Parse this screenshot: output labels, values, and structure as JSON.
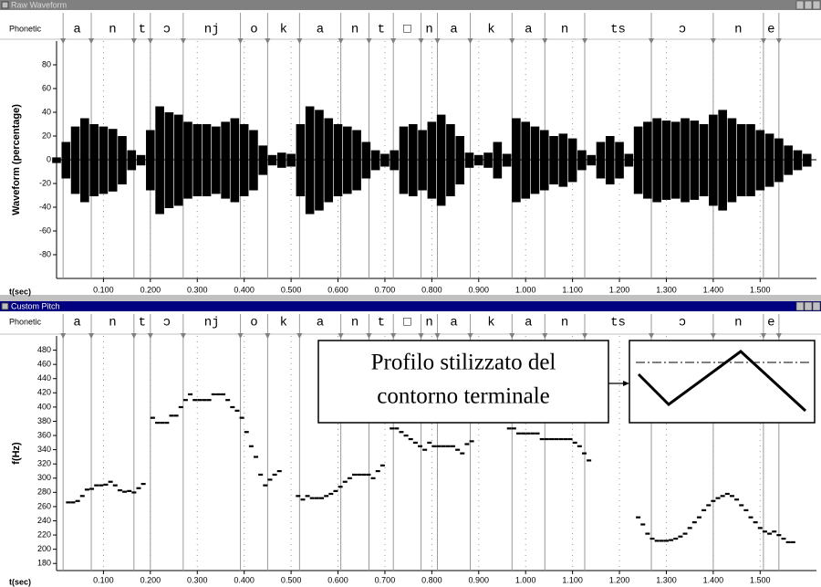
{
  "phonetic": {
    "label": "Phonetic",
    "segments": [
      "a",
      "n",
      "t",
      "ɔ",
      "nj",
      "o",
      "k",
      "a",
      "n",
      "t",
      "□",
      "n",
      "a",
      "k",
      "a",
      "n",
      "ts",
      "ɔ",
      "n",
      "e"
    ],
    "boundaries": [
      0.014,
      0.074,
      0.165,
      0.2,
      0.27,
      0.392,
      0.45,
      0.518,
      0.606,
      0.666,
      0.718,
      0.777,
      0.812,
      0.882,
      0.971,
      1.041,
      1.126,
      1.268,
      1.4,
      1.507,
      1.54
    ]
  },
  "chart_data": [
    {
      "type": "waveform",
      "window_title": "Raw Waveform",
      "ylabel": "Waveform (percentage)",
      "xlabel": "t(sec)",
      "color": "#000000",
      "x": [
        0,
        0.02,
        0.04,
        0.06,
        0.08,
        0.1,
        0.12,
        0.14,
        0.16,
        0.18,
        0.2,
        0.22,
        0.24,
        0.26,
        0.28,
        0.3,
        0.32,
        0.34,
        0.36,
        0.38,
        0.4,
        0.42,
        0.44,
        0.46,
        0.48,
        0.5,
        0.52,
        0.54,
        0.56,
        0.58,
        0.6,
        0.62,
        0.64,
        0.66,
        0.68,
        0.7,
        0.72,
        0.74,
        0.76,
        0.78,
        0.8,
        0.82,
        0.84,
        0.86,
        0.88,
        0.9,
        0.92,
        0.94,
        0.96,
        0.98,
        1.0,
        1.02,
        1.04,
        1.06,
        1.08,
        1.1,
        1.12,
        1.14,
        1.16,
        1.18,
        1.2,
        1.22,
        1.24,
        1.26,
        1.28,
        1.3,
        1.32,
        1.34,
        1.36,
        1.38,
        1.4,
        1.42,
        1.44,
        1.46,
        1.48,
        1.5,
        1.52,
        1.54,
        1.56,
        1.58,
        1.6
      ],
      "values": [
        2,
        15,
        28,
        35,
        30,
        28,
        26,
        20,
        8,
        4,
        25,
        45,
        40,
        38,
        32,
        30,
        30,
        28,
        32,
        35,
        30,
        25,
        12,
        4,
        6,
        5,
        30,
        45,
        42,
        35,
        30,
        28,
        25,
        15,
        8,
        5,
        8,
        28,
        30,
        25,
        32,
        38,
        30,
        20,
        6,
        4,
        6,
        15,
        5,
        35,
        32,
        28,
        25,
        20,
        22,
        18,
        8,
        4,
        15,
        20,
        15,
        5,
        28,
        32,
        35,
        33,
        32,
        35,
        33,
        30,
        38,
        42,
        35,
        30,
        30,
        25,
        22,
        18,
        12,
        8,
        5
      ],
      "xlim": [
        0,
        1.62
      ],
      "xticks": [
        {
          "value": 0.1,
          "label": "0.100"
        },
        {
          "value": 0.2,
          "label": "0.200"
        },
        {
          "value": 0.3,
          "label": "0.300"
        },
        {
          "value": 0.4,
          "label": "0.400"
        },
        {
          "value": 0.5,
          "label": "0.500"
        },
        {
          "value": 0.6,
          "label": "0.600"
        },
        {
          "value": 0.7,
          "label": "0.700"
        },
        {
          "value": 0.8,
          "label": "0.800"
        },
        {
          "value": 0.9,
          "label": "0.900"
        },
        {
          "value": 1.0,
          "label": "1.000"
        },
        {
          "value": 1.1,
          "label": "1.100"
        },
        {
          "value": 1.2,
          "label": "1.200"
        },
        {
          "value": 1.3,
          "label": "1.300"
        },
        {
          "value": 1.4,
          "label": "1.400"
        },
        {
          "value": 1.5,
          "label": "1.500"
        }
      ],
      "ylim": [
        -100,
        100
      ],
      "yticks": [
        -80,
        -60,
        -40,
        -20,
        0,
        20,
        40,
        60,
        80
      ],
      "grid": true
    },
    {
      "type": "pitch",
      "window_title": "Custom Pitch",
      "ylabel": "f(Hz)",
      "xlabel": "t(sec)",
      "color": "#000000",
      "annotation": [
        "Profilo stilizzato del",
        "contorno terminale"
      ],
      "x": [
        0.025,
        0.035,
        0.045,
        0.055,
        0.065,
        0.075,
        0.085,
        0.095,
        0.105,
        0.115,
        0.125,
        0.135,
        0.145,
        0.155,
        0.165,
        0.175,
        0.185,
        0.205,
        0.215,
        0.225,
        0.235,
        0.245,
        0.255,
        0.265,
        0.275,
        0.285,
        0.295,
        0.305,
        0.315,
        0.325,
        0.335,
        0.345,
        0.355,
        0.365,
        0.375,
        0.385,
        0.395,
        0.405,
        0.415,
        0.425,
        0.435,
        0.445,
        0.455,
        0.465,
        0.475,
        0.515,
        0.525,
        0.535,
        0.545,
        0.555,
        0.565,
        0.575,
        0.585,
        0.595,
        0.605,
        0.615,
        0.625,
        0.635,
        0.645,
        0.655,
        0.665,
        0.675,
        0.685,
        0.695,
        0.715,
        0.725,
        0.735,
        0.745,
        0.755,
        0.765,
        0.775,
        0.785,
        0.795,
        0.805,
        0.815,
        0.825,
        0.835,
        0.845,
        0.855,
        0.865,
        0.875,
        0.885,
        0.965,
        0.975,
        0.985,
        0.995,
        1.005,
        1.015,
        1.025,
        1.035,
        1.045,
        1.055,
        1.065,
        1.075,
        1.085,
        1.095,
        1.105,
        1.115,
        1.125,
        1.135,
        1.24,
        1.25,
        1.26,
        1.27,
        1.28,
        1.29,
        1.3,
        1.31,
        1.32,
        1.33,
        1.34,
        1.35,
        1.36,
        1.37,
        1.38,
        1.39,
        1.4,
        1.41,
        1.42,
        1.43,
        1.44,
        1.45,
        1.46,
        1.47,
        1.48,
        1.49,
        1.5,
        1.51,
        1.52,
        1.53,
        1.54,
        1.55,
        1.56,
        1.57
      ],
      "values": [
        266,
        266,
        268,
        275,
        284,
        285,
        290,
        290,
        291,
        295,
        290,
        283,
        281,
        282,
        280,
        286,
        292,
        385,
        378,
        378,
        378,
        388,
        388,
        400,
        410,
        418,
        410,
        410,
        410,
        410,
        418,
        418,
        418,
        410,
        400,
        395,
        385,
        365,
        345,
        330,
        305,
        290,
        298,
        305,
        310,
        275,
        270,
        275,
        272,
        272,
        272,
        275,
        278,
        282,
        288,
        295,
        300,
        305,
        305,
        305,
        305,
        300,
        310,
        318,
        370,
        370,
        365,
        360,
        355,
        350,
        345,
        340,
        350,
        345,
        345,
        345,
        345,
        345,
        340,
        335,
        348,
        352,
        370,
        370,
        363,
        363,
        363,
        363,
        363,
        355,
        355,
        355,
        355,
        355,
        355,
        355,
        350,
        345,
        335,
        325,
        245,
        235,
        222,
        215,
        212,
        212,
        212,
        213,
        215,
        218,
        222,
        230,
        238,
        245,
        255,
        262,
        268,
        272,
        275,
        278,
        275,
        270,
        262,
        255,
        245,
        238,
        230,
        225,
        222,
        225,
        220,
        215,
        210,
        210
      ],
      "xlim": [
        0,
        1.62
      ],
      "xticks": [
        {
          "value": 0.1,
          "label": "0.100"
        },
        {
          "value": 0.2,
          "label": "0.200"
        },
        {
          "value": 0.3,
          "label": "0.300"
        },
        {
          "value": 0.4,
          "label": "0.400"
        },
        {
          "value": 0.5,
          "label": "0.500"
        },
        {
          "value": 0.6,
          "label": "0.600"
        },
        {
          "value": 0.7,
          "label": "0.700"
        },
        {
          "value": 0.8,
          "label": "0.800"
        },
        {
          "value": 0.9,
          "label": "0.900"
        },
        {
          "value": 1.0,
          "label": "1.000"
        },
        {
          "value": 1.1,
          "label": "1.100"
        },
        {
          "value": 1.2,
          "label": "1.200"
        },
        {
          "value": 1.3,
          "label": "1.300"
        },
        {
          "value": 1.4,
          "label": "1.400"
        },
        {
          "value": 1.5,
          "label": "1.500"
        }
      ],
      "ylim": [
        170,
        500
      ],
      "yticks": [
        180,
        200,
        220,
        240,
        260,
        280,
        300,
        320,
        340,
        360,
        380,
        400,
        420,
        440,
        460,
        480
      ],
      "grid": true
    }
  ]
}
